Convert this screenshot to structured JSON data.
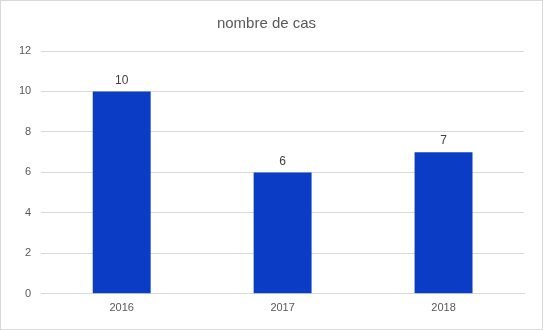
{
  "chart_data": {
    "type": "bar",
    "title": "nombre de cas",
    "categories": [
      "2016",
      "2017",
      "2018"
    ],
    "values": [
      10,
      6,
      7
    ],
    "color": "#0a3cc6",
    "ylim": [
      0,
      12
    ],
    "yticks": [
      0,
      2,
      4,
      6,
      8,
      10,
      12
    ],
    "grid": true,
    "data_labels": true
  }
}
